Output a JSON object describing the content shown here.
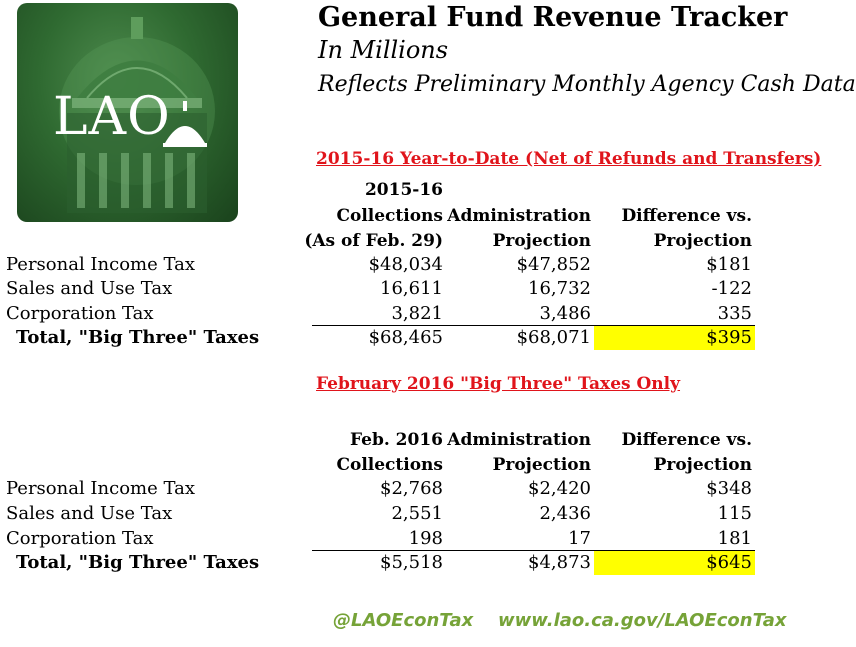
{
  "logo": {
    "text": "LAO"
  },
  "header": {
    "title": "General Fund Revenue Tracker",
    "subtitle": "In Millions",
    "subtitle2": "Reflects Preliminary Monthly Agency Cash Data"
  },
  "ytd": {
    "section_title": "2015-16 Year-to-Date (Net of Refunds and Transfers)",
    "col1": [
      "2015-16",
      "Collections",
      "(As of Feb. 29)"
    ],
    "col2": [
      "Administration",
      "Projection"
    ],
    "col3": [
      "Difference vs.",
      "Projection"
    ],
    "rows": [
      {
        "label": "Personal Income Tax",
        "collections": "$48,034",
        "projection": "$47,852",
        "difference": "$181"
      },
      {
        "label": "Sales and Use Tax",
        "collections": "16,611",
        "projection": "16,732",
        "difference": "-122"
      },
      {
        "label": "Corporation Tax",
        "collections": "3,821",
        "projection": "3,486",
        "difference": "335"
      }
    ],
    "total": {
      "label": "Total, \"Big Three\" Taxes",
      "collections": "$68,465",
      "projection": "$68,071",
      "difference": "$395"
    }
  },
  "feb": {
    "section_title": "February 2016 \"Big Three\" Taxes Only",
    "col1": [
      "Feb. 2016",
      "Collections"
    ],
    "col2": [
      "Administration",
      "Projection"
    ],
    "col3": [
      "Difference vs.",
      "Projection"
    ],
    "rows": [
      {
        "label": "Personal Income Tax",
        "collections": "$2,768",
        "projection": "$2,420",
        "difference": "$348"
      },
      {
        "label": "Sales and Use Tax",
        "collections": "2,551",
        "projection": "2,436",
        "difference": "115"
      },
      {
        "label": "Corporation Tax",
        "collections": "198",
        "projection": "17",
        "difference": "181"
      }
    ],
    "total": {
      "label": "Total, \"Big Three\" Taxes",
      "collections": "$5,518",
      "projection": "$4,873",
      "difference": "$645"
    }
  },
  "footer": {
    "twitter": "@LAOEconTax",
    "url": "www.lao.ca.gov/LAOEconTax"
  },
  "colors": {
    "section_title": "#e0141b",
    "highlight": "#ffff00",
    "footer": "#76a338",
    "logo_bg": "#2f6a31"
  }
}
